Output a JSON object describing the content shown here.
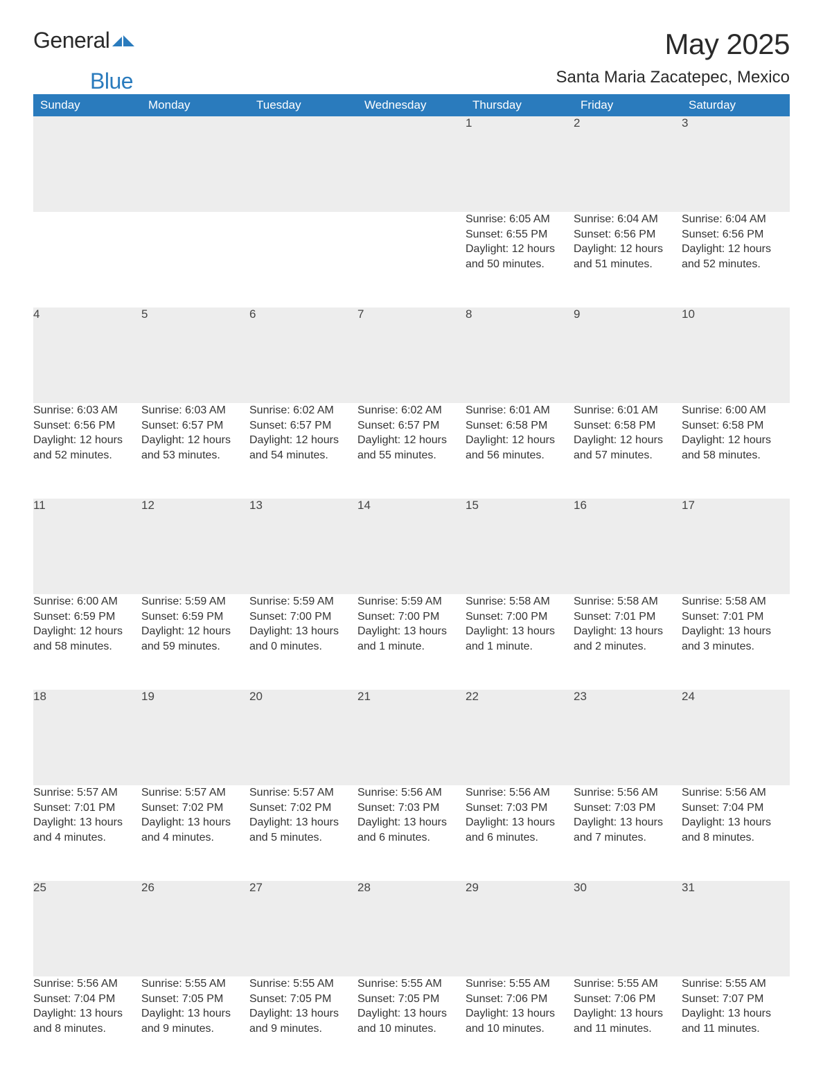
{
  "brand": {
    "part1": "General",
    "part2": "Blue"
  },
  "title": "May 2025",
  "location": "Santa Maria Zacatepec, Mexico",
  "calendar": {
    "type": "table",
    "columns": [
      "Sunday",
      "Monday",
      "Tuesday",
      "Wednesday",
      "Thursday",
      "Friday",
      "Saturday"
    ],
    "header_bg": "#2a7bbd",
    "header_fg": "#ffffff",
    "daynum_bg": "#ededed",
    "row_divider_color": "#2a7bbd",
    "text_color": "#333333",
    "body_fontsize": 16,
    "header_fontsize": 17,
    "weeks": [
      [
        null,
        null,
        null,
        null,
        {
          "n": "1",
          "sr": "6:05 AM",
          "ss": "6:55 PM",
          "dl": "12 hours and 50 minutes."
        },
        {
          "n": "2",
          "sr": "6:04 AM",
          "ss": "6:56 PM",
          "dl": "12 hours and 51 minutes."
        },
        {
          "n": "3",
          "sr": "6:04 AM",
          "ss": "6:56 PM",
          "dl": "12 hours and 52 minutes."
        }
      ],
      [
        {
          "n": "4",
          "sr": "6:03 AM",
          "ss": "6:56 PM",
          "dl": "12 hours and 52 minutes."
        },
        {
          "n": "5",
          "sr": "6:03 AM",
          "ss": "6:57 PM",
          "dl": "12 hours and 53 minutes."
        },
        {
          "n": "6",
          "sr": "6:02 AM",
          "ss": "6:57 PM",
          "dl": "12 hours and 54 minutes."
        },
        {
          "n": "7",
          "sr": "6:02 AM",
          "ss": "6:57 PM",
          "dl": "12 hours and 55 minutes."
        },
        {
          "n": "8",
          "sr": "6:01 AM",
          "ss": "6:58 PM",
          "dl": "12 hours and 56 minutes."
        },
        {
          "n": "9",
          "sr": "6:01 AM",
          "ss": "6:58 PM",
          "dl": "12 hours and 57 minutes."
        },
        {
          "n": "10",
          "sr": "6:00 AM",
          "ss": "6:58 PM",
          "dl": "12 hours and 58 minutes."
        }
      ],
      [
        {
          "n": "11",
          "sr": "6:00 AM",
          "ss": "6:59 PM",
          "dl": "12 hours and 58 minutes."
        },
        {
          "n": "12",
          "sr": "5:59 AM",
          "ss": "6:59 PM",
          "dl": "12 hours and 59 minutes."
        },
        {
          "n": "13",
          "sr": "5:59 AM",
          "ss": "7:00 PM",
          "dl": "13 hours and 0 minutes."
        },
        {
          "n": "14",
          "sr": "5:59 AM",
          "ss": "7:00 PM",
          "dl": "13 hours and 1 minute."
        },
        {
          "n": "15",
          "sr": "5:58 AM",
          "ss": "7:00 PM",
          "dl": "13 hours and 1 minute."
        },
        {
          "n": "16",
          "sr": "5:58 AM",
          "ss": "7:01 PM",
          "dl": "13 hours and 2 minutes."
        },
        {
          "n": "17",
          "sr": "5:58 AM",
          "ss": "7:01 PM",
          "dl": "13 hours and 3 minutes."
        }
      ],
      [
        {
          "n": "18",
          "sr": "5:57 AM",
          "ss": "7:01 PM",
          "dl": "13 hours and 4 minutes."
        },
        {
          "n": "19",
          "sr": "5:57 AM",
          "ss": "7:02 PM",
          "dl": "13 hours and 4 minutes."
        },
        {
          "n": "20",
          "sr": "5:57 AM",
          "ss": "7:02 PM",
          "dl": "13 hours and 5 minutes."
        },
        {
          "n": "21",
          "sr": "5:56 AM",
          "ss": "7:03 PM",
          "dl": "13 hours and 6 minutes."
        },
        {
          "n": "22",
          "sr": "5:56 AM",
          "ss": "7:03 PM",
          "dl": "13 hours and 6 minutes."
        },
        {
          "n": "23",
          "sr": "5:56 AM",
          "ss": "7:03 PM",
          "dl": "13 hours and 7 minutes."
        },
        {
          "n": "24",
          "sr": "5:56 AM",
          "ss": "7:04 PM",
          "dl": "13 hours and 8 minutes."
        }
      ],
      [
        {
          "n": "25",
          "sr": "5:56 AM",
          "ss": "7:04 PM",
          "dl": "13 hours and 8 minutes."
        },
        {
          "n": "26",
          "sr": "5:55 AM",
          "ss": "7:05 PM",
          "dl": "13 hours and 9 minutes."
        },
        {
          "n": "27",
          "sr": "5:55 AM",
          "ss": "7:05 PM",
          "dl": "13 hours and 9 minutes."
        },
        {
          "n": "28",
          "sr": "5:55 AM",
          "ss": "7:05 PM",
          "dl": "13 hours and 10 minutes."
        },
        {
          "n": "29",
          "sr": "5:55 AM",
          "ss": "7:06 PM",
          "dl": "13 hours and 10 minutes."
        },
        {
          "n": "30",
          "sr": "5:55 AM",
          "ss": "7:06 PM",
          "dl": "13 hours and 11 minutes."
        },
        {
          "n": "31",
          "sr": "5:55 AM",
          "ss": "7:07 PM",
          "dl": "13 hours and 11 minutes."
        }
      ]
    ],
    "labels": {
      "sunrise": "Sunrise:",
      "sunset": "Sunset:",
      "daylight": "Daylight:"
    }
  }
}
